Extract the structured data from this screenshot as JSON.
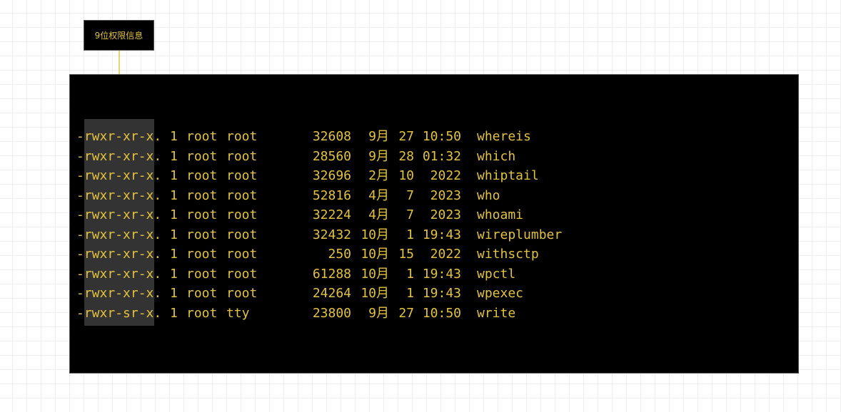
{
  "annotation": {
    "label": "9位权限信息",
    "color": "#e3c23d"
  },
  "listing": [
    {
      "perm": "-rwxr-xr-x.",
      "links": "1",
      "owner": "root",
      "group": "root",
      "size": "32608",
      "month": "9月",
      "day": "27",
      "time": "10:50",
      "name": "whereis"
    },
    {
      "perm": "-rwxr-xr-x.",
      "links": "1",
      "owner": "root",
      "group": "root",
      "size": "28560",
      "month": "9月",
      "day": "28",
      "time": "01:32",
      "name": "which"
    },
    {
      "perm": "-rwxr-xr-x.",
      "links": "1",
      "owner": "root",
      "group": "root",
      "size": "32696",
      "month": "2月",
      "day": "10",
      "time": "2022",
      "name": "whiptail"
    },
    {
      "perm": "-rwxr-xr-x.",
      "links": "1",
      "owner": "root",
      "group": "root",
      "size": "52816",
      "month": "4月",
      "day": "7",
      "time": "2023",
      "name": "who"
    },
    {
      "perm": "-rwxr-xr-x.",
      "links": "1",
      "owner": "root",
      "group": "root",
      "size": "32224",
      "month": "4月",
      "day": "7",
      "time": "2023",
      "name": "whoami"
    },
    {
      "perm": "-rwxr-xr-x.",
      "links": "1",
      "owner": "root",
      "group": "root",
      "size": "32432",
      "month": "10月",
      "day": "1",
      "time": "19:43",
      "name": "wireplumber"
    },
    {
      "perm": "-rwxr-xr-x.",
      "links": "1",
      "owner": "root",
      "group": "root",
      "size": "250",
      "month": "10月",
      "day": "15",
      "time": "2022",
      "name": "withsctp"
    },
    {
      "perm": "-rwxr-xr-x.",
      "links": "1",
      "owner": "root",
      "group": "root",
      "size": "61288",
      "month": "10月",
      "day": "1",
      "time": "19:43",
      "name": "wpctl"
    },
    {
      "perm": "-rwxr-xr-x.",
      "links": "1",
      "owner": "root",
      "group": "root",
      "size": "24264",
      "month": "10月",
      "day": "1",
      "time": "19:43",
      "name": "wpexec"
    },
    {
      "perm": "-rwxr-sr-x.",
      "links": "1",
      "owner": "root",
      "group": "tty",
      "size": "23800",
      "month": "9月",
      "day": "27",
      "time": "10:50",
      "name": "write"
    }
  ]
}
